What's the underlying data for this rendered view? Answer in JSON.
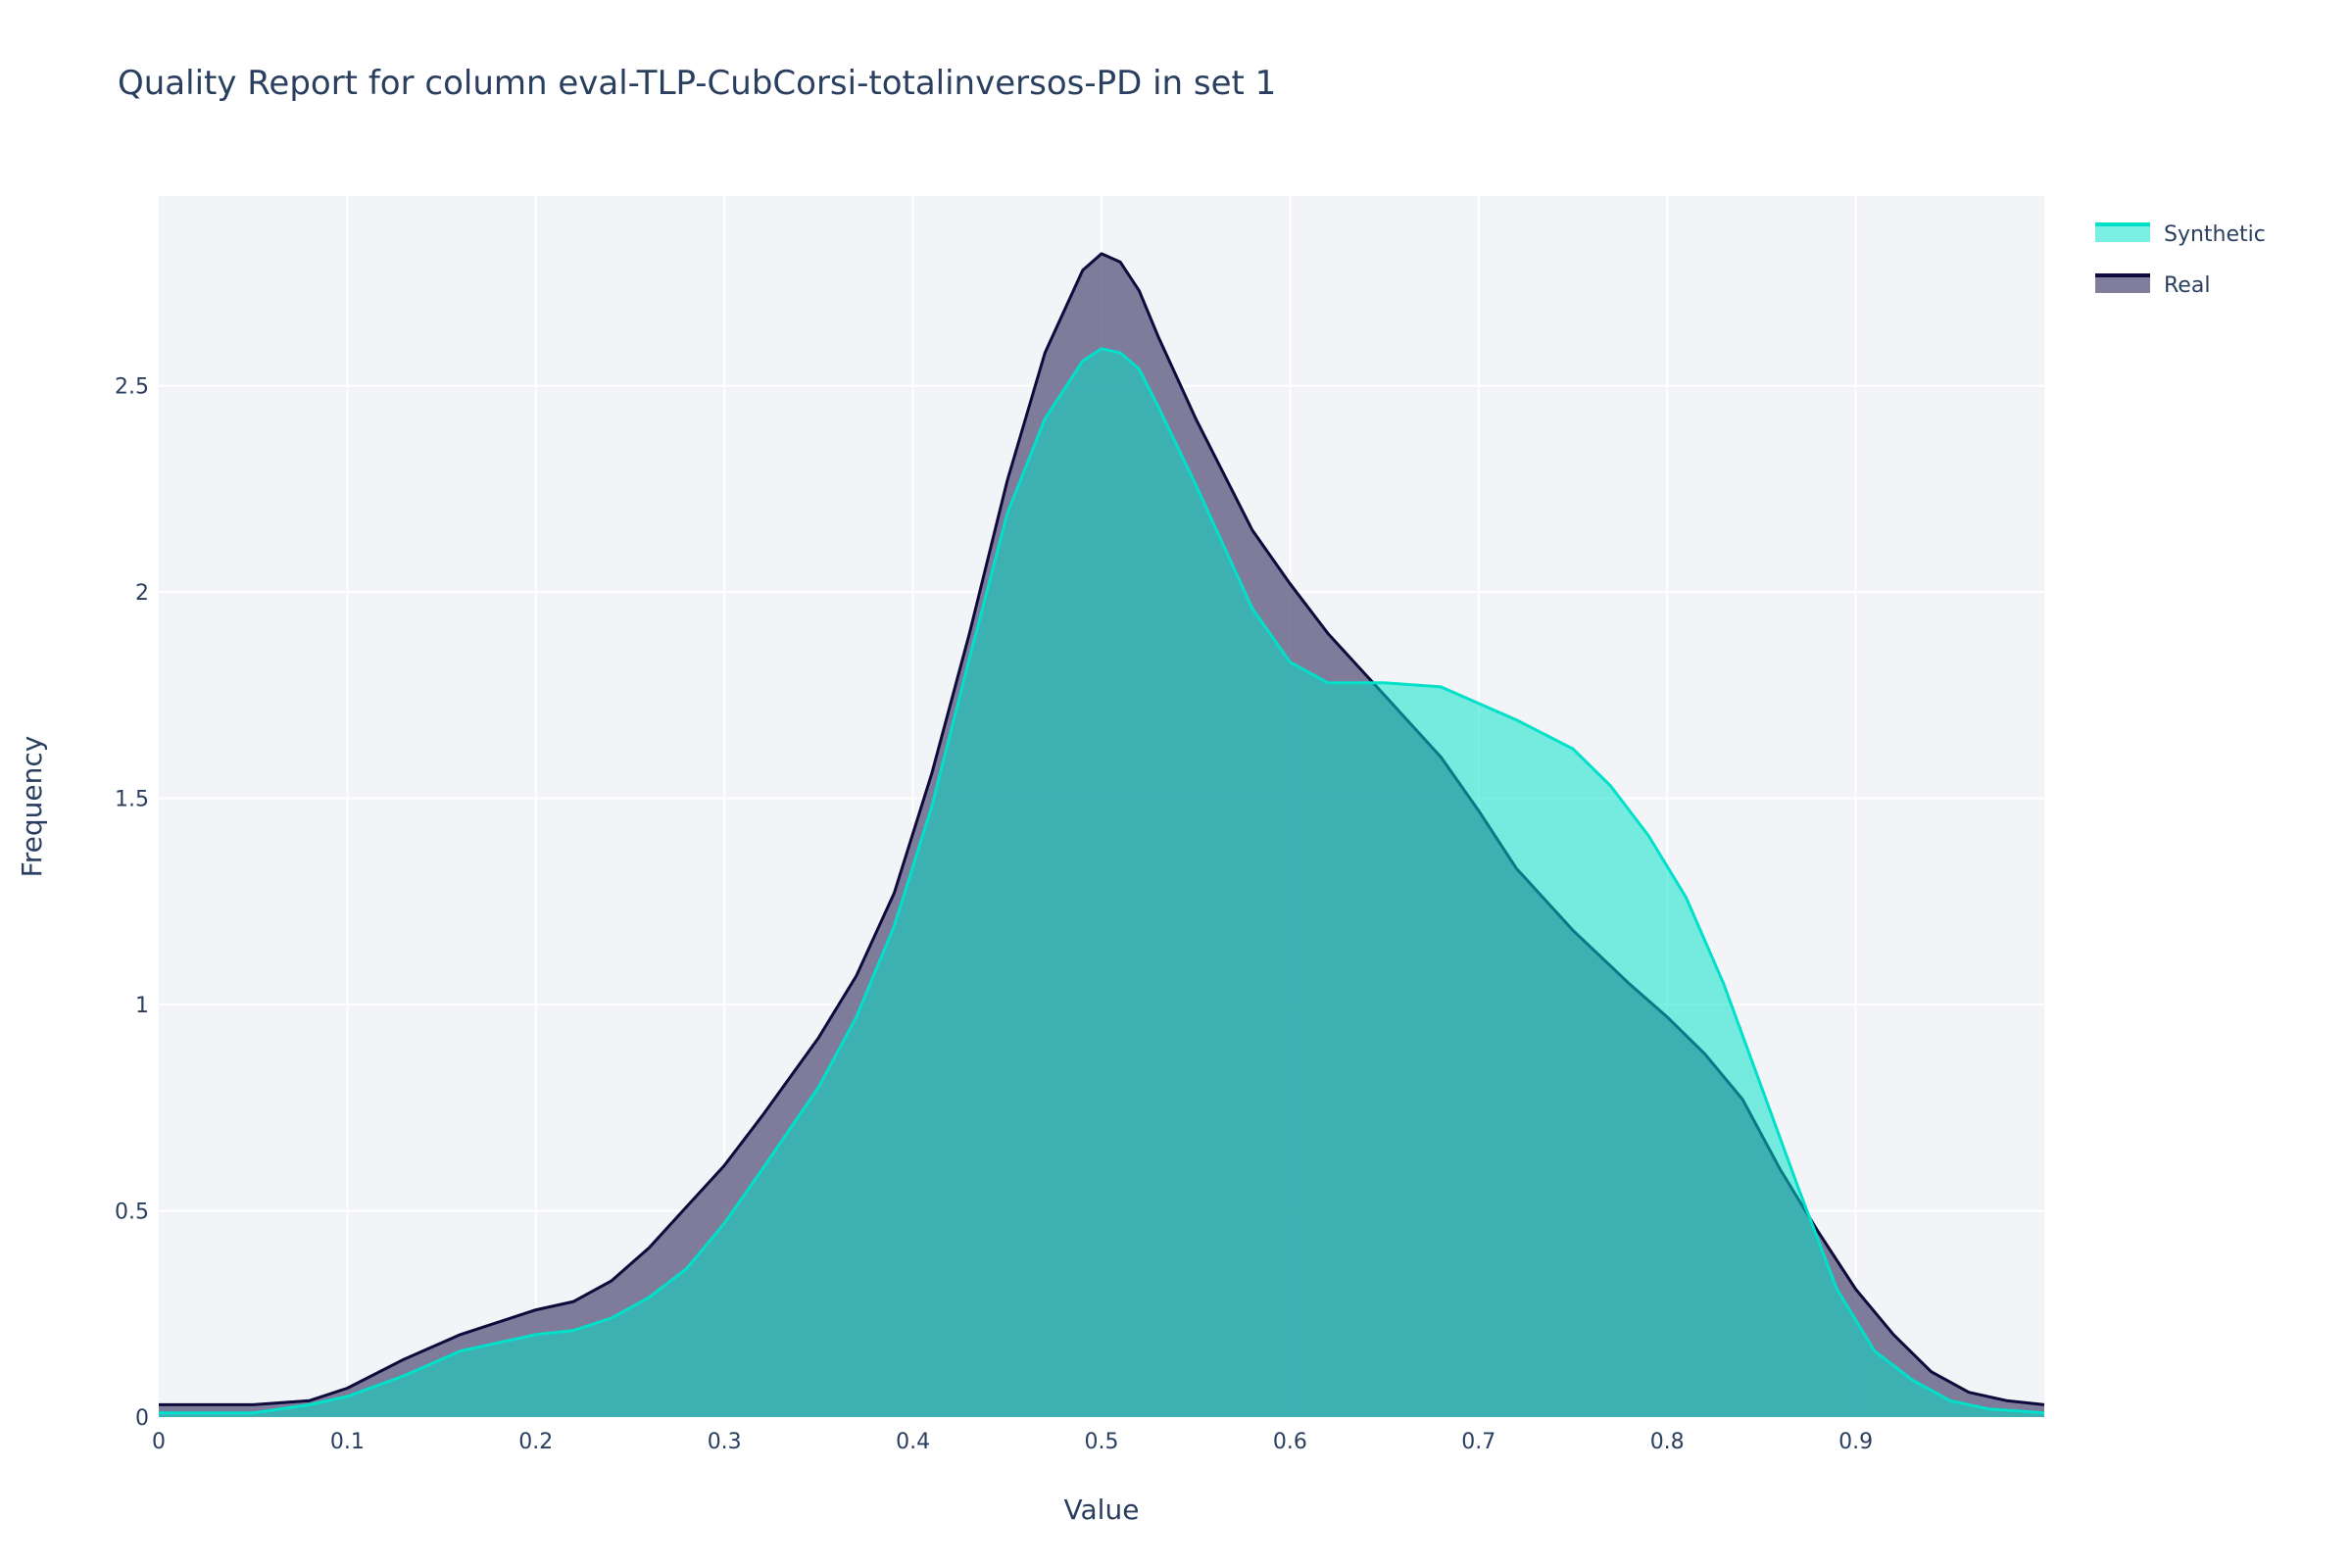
{
  "chart_data": {
    "type": "area",
    "title": "Quality Report for column eval-TLP-CubCorsi-totalinversos-PD in set 1",
    "xlabel": "Value",
    "ylabel": "Frequency",
    "xlim": [
      0,
      1
    ],
    "ylim": [
      0,
      2.96
    ],
    "grid": true,
    "legend_position": "top-right",
    "x_ticks": [
      0,
      0.1,
      0.2,
      0.3,
      0.4,
      0.5,
      0.6,
      0.7,
      0.8,
      0.9
    ],
    "x_tick_labels": [
      "0",
      "0.1",
      "0.2",
      "0.3",
      "0.4",
      "0.5",
      "0.6",
      "0.7",
      "0.8",
      "0.9"
    ],
    "y_ticks": [
      0,
      0.5,
      1,
      1.5,
      2,
      2.5
    ],
    "y_tick_labels": [
      "0",
      "0.5",
      "1",
      "1.5",
      "2",
      "2.5"
    ],
    "series": [
      {
        "name": "Real",
        "line_color": "#0e0b3c",
        "fill_color": "#5c5a80",
        "x": [
          0,
          0.05,
          0.08,
          0.1,
          0.13,
          0.16,
          0.2,
          0.22,
          0.24,
          0.26,
          0.28,
          0.3,
          0.32,
          0.35,
          0.37,
          0.39,
          0.41,
          0.43,
          0.45,
          0.47,
          0.49,
          0.5,
          0.51,
          0.52,
          0.53,
          0.55,
          0.58,
          0.6,
          0.62,
          0.65,
          0.68,
          0.7,
          0.72,
          0.75,
          0.78,
          0.8,
          0.82,
          0.84,
          0.86,
          0.88,
          0.9,
          0.92,
          0.94,
          0.96,
          0.98,
          1.0
        ],
        "y": [
          0.03,
          0.03,
          0.04,
          0.07,
          0.14,
          0.2,
          0.26,
          0.28,
          0.33,
          0.41,
          0.51,
          0.61,
          0.73,
          0.92,
          1.07,
          1.27,
          1.56,
          1.9,
          2.27,
          2.58,
          2.78,
          2.82,
          2.8,
          2.73,
          2.62,
          2.42,
          2.15,
          2.02,
          1.9,
          1.75,
          1.6,
          1.47,
          1.33,
          1.18,
          1.05,
          0.97,
          0.88,
          0.77,
          0.6,
          0.45,
          0.31,
          0.2,
          0.11,
          0.06,
          0.04,
          0.03
        ]
      },
      {
        "name": "Synthetic",
        "line_color": "#01e0c9",
        "fill_color": "#01e0c9",
        "x": [
          0,
          0.05,
          0.08,
          0.1,
          0.13,
          0.16,
          0.2,
          0.22,
          0.24,
          0.26,
          0.28,
          0.3,
          0.32,
          0.35,
          0.37,
          0.39,
          0.41,
          0.43,
          0.45,
          0.47,
          0.49,
          0.5,
          0.51,
          0.52,
          0.53,
          0.55,
          0.58,
          0.6,
          0.62,
          0.65,
          0.68,
          0.7,
          0.72,
          0.75,
          0.77,
          0.79,
          0.81,
          0.83,
          0.85,
          0.87,
          0.89,
          0.91,
          0.93,
          0.95,
          0.97,
          1.0
        ],
        "y": [
          0.01,
          0.01,
          0.03,
          0.05,
          0.1,
          0.16,
          0.2,
          0.21,
          0.24,
          0.29,
          0.36,
          0.47,
          0.6,
          0.8,
          0.97,
          1.19,
          1.48,
          1.84,
          2.19,
          2.42,
          2.56,
          2.59,
          2.58,
          2.54,
          2.45,
          2.26,
          1.96,
          1.83,
          1.78,
          1.78,
          1.77,
          1.73,
          1.69,
          1.62,
          1.53,
          1.41,
          1.26,
          1.05,
          0.8,
          0.55,
          0.31,
          0.16,
          0.09,
          0.04,
          0.02,
          0.01
        ]
      }
    ]
  }
}
